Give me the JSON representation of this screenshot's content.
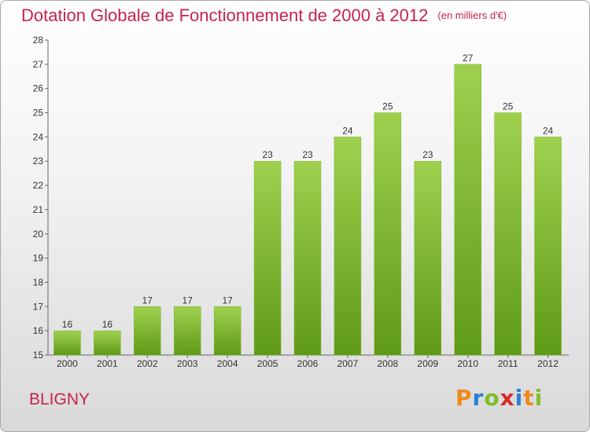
{
  "header": {
    "title": "Dotation Globale de Fonctionnement de 2000 à 2012",
    "unit": "(en milliers d'€)"
  },
  "footer": {
    "commune": "BLIGNY",
    "logo_letters": [
      "P",
      "r",
      "o",
      "x",
      "i",
      "t",
      "i"
    ],
    "logo_colors": [
      "#f08a1c",
      "#2b7fd4",
      "#7fbf2a",
      "#d62a2a",
      "#2b7fd4",
      "#f08a1c",
      "#7fbf2a"
    ]
  },
  "colors": {
    "title": "#c8234a",
    "bar_top": "#9fd14f",
    "bar_bottom": "#5f9a16",
    "axis": "#666666"
  },
  "chart_data": {
    "type": "bar",
    "categories": [
      "2000",
      "2001",
      "2002",
      "2003",
      "2004",
      "2005",
      "2006",
      "2007",
      "2008",
      "2009",
      "2010",
      "2011",
      "2012"
    ],
    "values": [
      16,
      16,
      17,
      17,
      17,
      23,
      23,
      24,
      25,
      23,
      27,
      25,
      24
    ],
    "ylim": [
      15,
      28
    ],
    "yticks": [
      15,
      16,
      17,
      18,
      19,
      20,
      21,
      22,
      23,
      24,
      25,
      26,
      27,
      28
    ],
    "grid": false
  }
}
